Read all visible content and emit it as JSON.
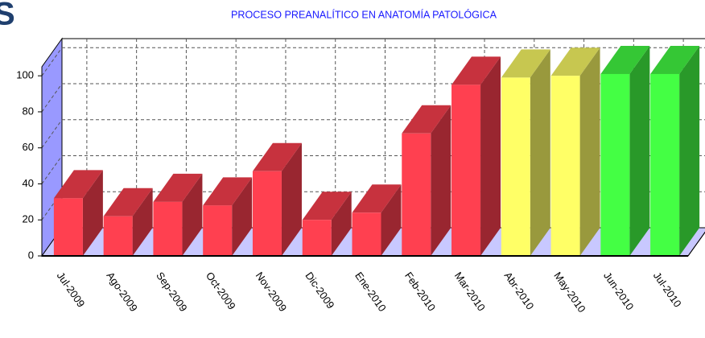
{
  "corner_text": "S",
  "chart_data": {
    "type": "bar3d",
    "title": "PROCESO PREANALÍTICO EN ANATOMÍA PATOLÓGICA",
    "categories": [
      "Jul-2009",
      "Ago-2009",
      "Sep-2009",
      "Oct-2009",
      "Nov-2009",
      "Dic-2009",
      "Ene-2010",
      "Feb-2010",
      "Mar-2010",
      "Abr-2010",
      "May-2010",
      "Jun-2010",
      "Jul-2010"
    ],
    "values": [
      32,
      22,
      30,
      28,
      47,
      20,
      24,
      68,
      95,
      99,
      100,
      101,
      101
    ],
    "colors": [
      "#ff4050",
      "#ff4050",
      "#ff4050",
      "#ff4050",
      "#ff4050",
      "#ff4050",
      "#ff4050",
      "#ff4050",
      "#ff4050",
      "#ffff66",
      "#ffff66",
      "#44ff44",
      "#44ff44"
    ],
    "ylim": [
      0,
      105
    ],
    "yticks": [
      0,
      20,
      40,
      60,
      80,
      100
    ],
    "grid": true
  }
}
